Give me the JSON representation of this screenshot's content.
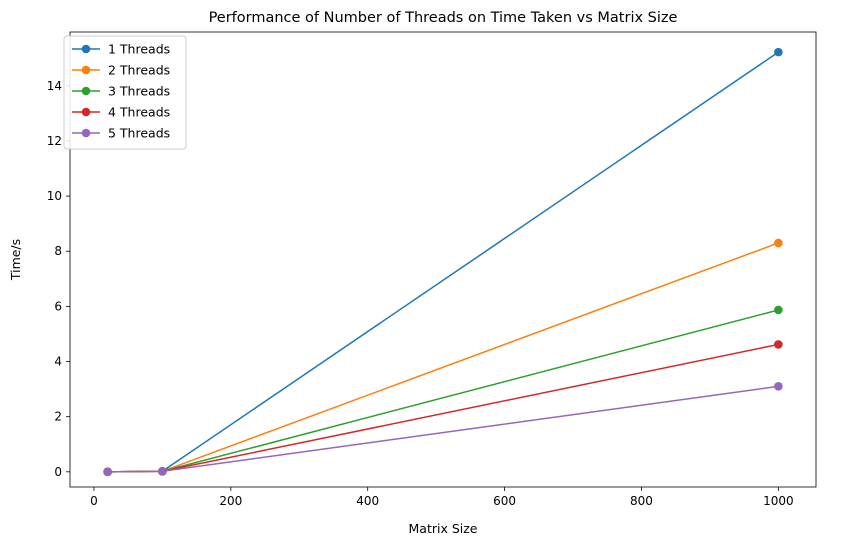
{
  "chart_data": {
    "type": "line",
    "title": "Performance of Number of Threads on Time Taken vs Matrix Size",
    "xlabel": "Matrix Size",
    "ylabel": "Time/s",
    "x": [
      20,
      100,
      1000
    ],
    "xlim": [
      -35,
      1055
    ],
    "ylim": [
      -0.55,
      15.95
    ],
    "xticks": [
      0,
      200,
      400,
      600,
      800,
      1000
    ],
    "yticks": [
      0,
      2,
      4,
      6,
      8,
      10,
      12,
      14
    ],
    "grid": false,
    "legend_position": "upper-left",
    "series": [
      {
        "name": "1 Threads",
        "color": "#1f77b4",
        "values": [
          0.0,
          0.02,
          15.22
        ]
      },
      {
        "name": "2 Threads",
        "color": "#ff7f0e",
        "values": [
          0.0,
          0.02,
          8.3
        ]
      },
      {
        "name": "3 Threads",
        "color": "#2ca02c",
        "values": [
          0.0,
          0.02,
          5.87
        ]
      },
      {
        "name": "4 Threads",
        "color": "#d62728",
        "values": [
          0.0,
          0.02,
          4.62
        ]
      },
      {
        "name": "5 Threads",
        "color": "#9467bd",
        "values": [
          0.0,
          0.02,
          3.1
        ]
      }
    ]
  }
}
